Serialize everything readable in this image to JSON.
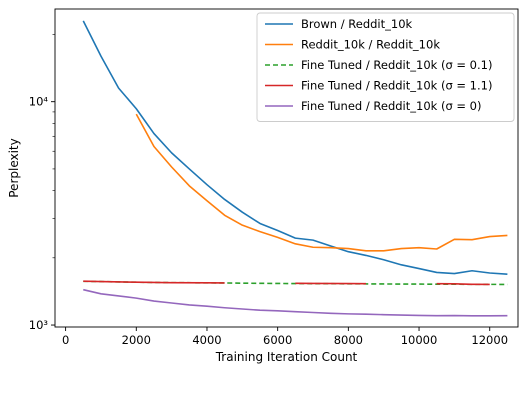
{
  "chart_data": {
    "type": "line",
    "title": "",
    "xlabel": "Training Iteration Count",
    "ylabel": "Perplexity",
    "xlim": [
      -300,
      12800
    ],
    "ylim": [
      980,
      26000
    ],
    "yscale": "log",
    "grid": false,
    "legend_position": "upper right",
    "x_ticks": [
      0,
      2000,
      4000,
      6000,
      8000,
      10000,
      12000
    ],
    "x_tick_labels": [
      "0",
      "2000",
      "4000",
      "6000",
      "8000",
      "10000",
      "12000"
    ],
    "y_ticks": [
      1000,
      10000
    ],
    "y_tick_labels": [
      "10³",
      "10⁴"
    ],
    "series": [
      {
        "name": "Brown / Reddit_10k",
        "color": "#1f77b4",
        "style": "solid",
        "x": [
          500,
          1000,
          1500,
          2000,
          2500,
          3000,
          3500,
          4000,
          4500,
          5000,
          5500,
          6000,
          6500,
          7000,
          7500,
          8000,
          8500,
          9000,
          9500,
          10000,
          10500,
          11000,
          11500,
          12000,
          12500
        ],
        "y": [
          23000,
          16000,
          11500,
          9300,
          7200,
          5900,
          5000,
          4250,
          3650,
          3200,
          2850,
          2650,
          2450,
          2400,
          2260,
          2130,
          2050,
          1960,
          1860,
          1790,
          1720,
          1700,
          1750,
          1710,
          1690
        ]
      },
      {
        "name": "Reddit_10k / Reddit_10k",
        "color": "#ff7f0e",
        "style": "solid",
        "x": [
          2000,
          2500,
          3000,
          3500,
          4000,
          4500,
          5000,
          5500,
          6000,
          6500,
          7000,
          7500,
          8000,
          8500,
          9000,
          9500,
          10000,
          10500,
          11000,
          11500,
          12000,
          12500
        ],
        "y": [
          8800,
          6300,
          5100,
          4200,
          3600,
          3100,
          2800,
          2620,
          2470,
          2310,
          2230,
          2220,
          2200,
          2150,
          2150,
          2200,
          2220,
          2190,
          2420,
          2410,
          2490,
          2520
        ]
      },
      {
        "name": "Fine Tuned / Reddit_10k (σ = 0.1)",
        "color": "#2ca02c",
        "style": "dashed",
        "x": [
          500,
          1000,
          2000,
          3000,
          4000,
          4500,
          5000,
          6000,
          7000,
          8000,
          9000,
          10000,
          11000,
          12000,
          12500
        ],
        "y": [
          1570,
          1565,
          1555,
          1548,
          1545,
          1543,
          1540,
          1535,
          1532,
          1530,
          1527,
          1525,
          1523,
          1521,
          1520
        ]
      },
      {
        "name": "Fine Tuned / Reddit_10k (σ = 1.1)",
        "color": "#d62728",
        "style": "solid",
        "x": [
          500,
          1000,
          2000,
          3000,
          4000,
          4500
        ],
        "y": [
          1572,
          1565,
          1555,
          1548,
          1545,
          1543
        ],
        "segments": [
          {
            "x": [
              500,
              1000,
              2000,
              3000,
              4000,
              4500
            ],
            "y": [
              1572,
              1565,
              1555,
              1548,
              1545,
              1543
            ]
          },
          {
            "x": [
              6500,
              7000,
              8000,
              8500
            ],
            "y": [
              1538,
              1536,
              1533,
              1531
            ]
          },
          {
            "x": [
              10500,
              11000,
              11500,
              12000
            ],
            "y": [
              1532,
              1530,
              1522,
              1520
            ]
          }
        ]
      },
      {
        "name": "Fine Tuned / Reddit_10k (σ = 0)",
        "color": "#9467bd",
        "style": "solid",
        "x": [
          500,
          1000,
          1500,
          2000,
          2500,
          3000,
          3500,
          4000,
          4500,
          5000,
          5500,
          6000,
          6500,
          7000,
          7500,
          8000,
          8500,
          9000,
          9500,
          10000,
          10500,
          11000,
          11500,
          12000,
          12500
        ],
        "y": [
          1440,
          1380,
          1350,
          1320,
          1280,
          1255,
          1230,
          1215,
          1195,
          1180,
          1165,
          1158,
          1148,
          1138,
          1128,
          1122,
          1118,
          1113,
          1108,
          1104,
          1101,
          1103,
          1100,
          1100,
          1101
        ]
      }
    ]
  }
}
